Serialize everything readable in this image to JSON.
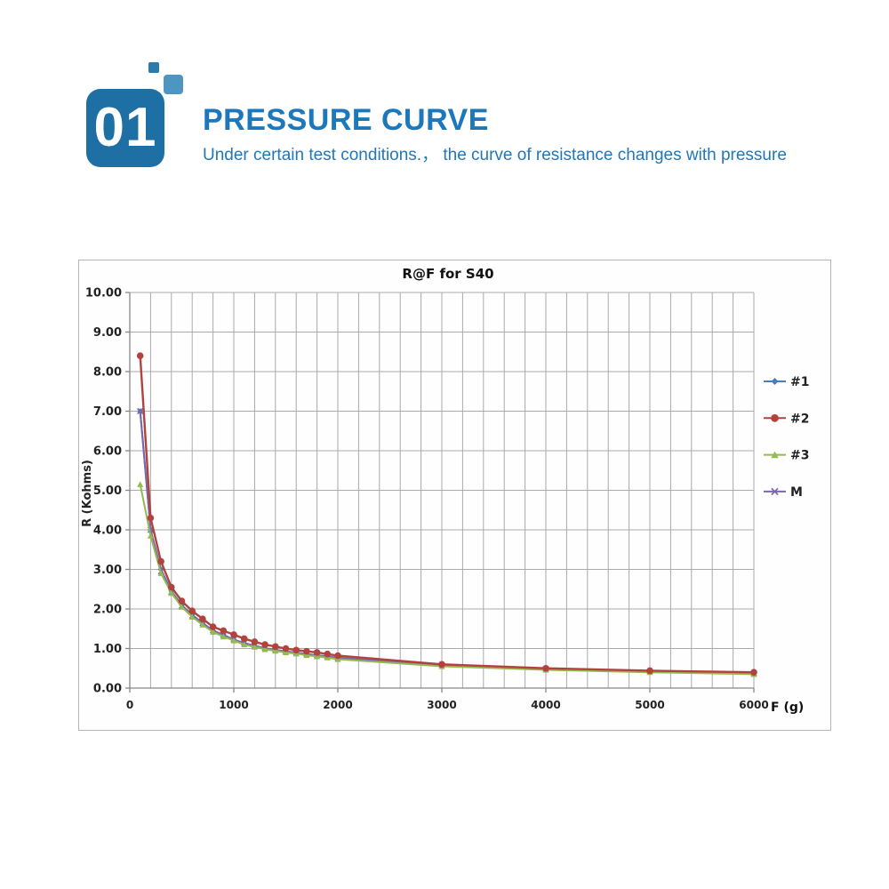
{
  "header": {
    "number": "01",
    "title": "PRESSURE CURVE",
    "subtitle": "Under certain test conditions.， the curve of resistance changes with pressure"
  },
  "colors": {
    "badge_blue": "#1e6fa4",
    "deco_small_blue": "#2b7bad",
    "deco_medium_blue": "#4d96c2",
    "title_blue": "#1c77bb",
    "subtitle_blue": "#2277b6",
    "grid_gray": "#aaaaaa",
    "axis_gray": "#888888",
    "label_dark": "#222222",
    "chart_border": "#b5b5b5"
  },
  "chart_data": {
    "type": "line",
    "title": "R@F for S40",
    "xlabel": "F (g)",
    "ylabel": "R (Kohms)",
    "xlim": [
      0,
      6000
    ],
    "ylim": [
      0,
      10
    ],
    "grid": true,
    "legend_position": "right",
    "x_minor_grid_step": 200,
    "x_tick_values": [
      0,
      1000,
      2000,
      3000,
      4000,
      5000,
      6000
    ],
    "x_tick_labels": [
      "0",
      "1000",
      "2000",
      "3000",
      "4000",
      "5000",
      "6000"
    ],
    "y_tick_values": [
      0,
      1,
      2,
      3,
      4,
      5,
      6,
      7,
      8,
      9,
      10
    ],
    "y_tick_labels": [
      "0.00",
      "1.00",
      "2.00",
      "3.00",
      "4.00",
      "5.00",
      "6.00",
      "7.00",
      "8.00",
      "9.00",
      "10.00"
    ],
    "x": [
      100,
      200,
      300,
      400,
      500,
      600,
      700,
      800,
      900,
      1000,
      1100,
      1200,
      1300,
      1400,
      1500,
      1600,
      1700,
      1800,
      1900,
      2000,
      3000,
      4000,
      5000,
      6000
    ],
    "series": [
      {
        "name": "#1",
        "color": "#4a7ebb",
        "marker": "diamond",
        "values": [
          7.0,
          4.0,
          3.0,
          2.45,
          2.1,
          1.85,
          1.65,
          1.45,
          1.35,
          1.22,
          1.13,
          1.06,
          1.0,
          0.96,
          0.92,
          0.89,
          0.86,
          0.83,
          0.8,
          0.76,
          0.58,
          0.48,
          0.42,
          0.37
        ]
      },
      {
        "name": "#2",
        "color": "#b2423e",
        "marker": "circle",
        "values": [
          8.4,
          4.3,
          3.2,
          2.55,
          2.2,
          1.95,
          1.75,
          1.55,
          1.45,
          1.35,
          1.25,
          1.17,
          1.1,
          1.05,
          1.0,
          0.96,
          0.93,
          0.9,
          0.86,
          0.82,
          0.6,
          0.5,
          0.44,
          0.4
        ]
      },
      {
        "name": "#3",
        "color": "#94ba52",
        "marker": "triangle",
        "values": [
          5.15,
          3.85,
          2.9,
          2.4,
          2.05,
          1.8,
          1.6,
          1.42,
          1.3,
          1.2,
          1.1,
          1.04,
          0.98,
          0.94,
          0.9,
          0.87,
          0.83,
          0.8,
          0.77,
          0.73,
          0.55,
          0.46,
          0.4,
          0.35
        ]
      },
      {
        "name": "M",
        "color": "#7b68ab",
        "marker": "x",
        "values": [
          7.0,
          4.0,
          2.95,
          2.43,
          2.08,
          1.83,
          1.64,
          1.46,
          1.34,
          1.23,
          1.14,
          1.07,
          1.01,
          0.97,
          0.93,
          0.9,
          0.86,
          0.83,
          0.8,
          0.77,
          0.58,
          0.48,
          0.42,
          0.37
        ]
      }
    ]
  }
}
